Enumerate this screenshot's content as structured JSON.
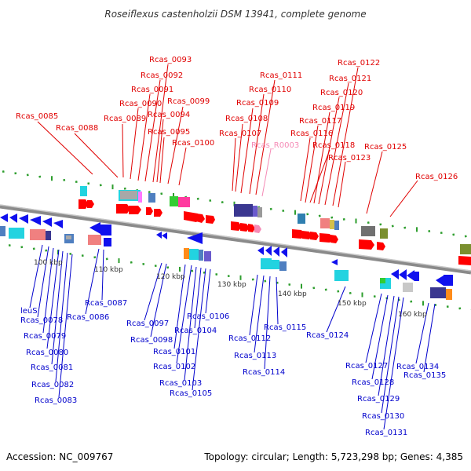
{
  "title": "Roseiflexus castenholzii DSM 13941, complete genome",
  "accession_text": "Accession: NC_009767",
  "summary_text": "Topology: circular; Length: 5,723,298 bp; Genes: 4,385",
  "colors": {
    "top_label": "#e00000",
    "bottom_label": "#0000cc",
    "rna_label": "#f58bb6",
    "backbone": "#888888",
    "tick": "#2e9e2e"
  },
  "kbp_labels": [
    "100 kbp",
    "110 kbp",
    "120 kbp",
    "130 kbp",
    "140 kbp",
    "150 kbp",
    "160 kbp"
  ],
  "top_labels": [
    "Rcas_0085",
    "Rcas_0088",
    "Rcas_0089",
    "Rcas_0090",
    "Rcas_0091",
    "Rcas_0092",
    "Rcas_0093",
    "Rcas_0094",
    "Rcas_0095",
    "Rcas_0099",
    "Rcas_0100",
    "Rcas_0107",
    "Rcas_0108",
    "Rcas_0109",
    "Rcas_0110",
    "Rcas_0111",
    "Rcas_R0003",
    "Rcas_0116",
    "Rcas_0117",
    "Rcas_0118",
    "Rcas_0119",
    "Rcas_0120",
    "Rcas_0121",
    "Rcas_0122",
    "Rcas_0123",
    "Rcas_0125",
    "Rcas_0126"
  ],
  "bottom_labels": [
    "leuS",
    "Rcas_0078",
    "Rcas_0079",
    "Rcas_0080",
    "Rcas_0081",
    "Rcas_0082",
    "Rcas_0083",
    "Rcas_0086",
    "Rcas_0087",
    "Rcas_0097",
    "Rcas_0098",
    "Rcas_0101",
    "Rcas_0102",
    "Rcas_0103",
    "Rcas_0104",
    "Rcas_0105",
    "Rcas_0106",
    "Rcas_0112",
    "Rcas_0113",
    "Rcas_0114",
    "Rcas_0115",
    "Rcas_0124",
    "Rcas_0127",
    "Rcas_0128",
    "Rcas_0129",
    "Rcas_0130",
    "Rcas_0131",
    "Rcas_0134",
    "Rcas_0135"
  ]
}
